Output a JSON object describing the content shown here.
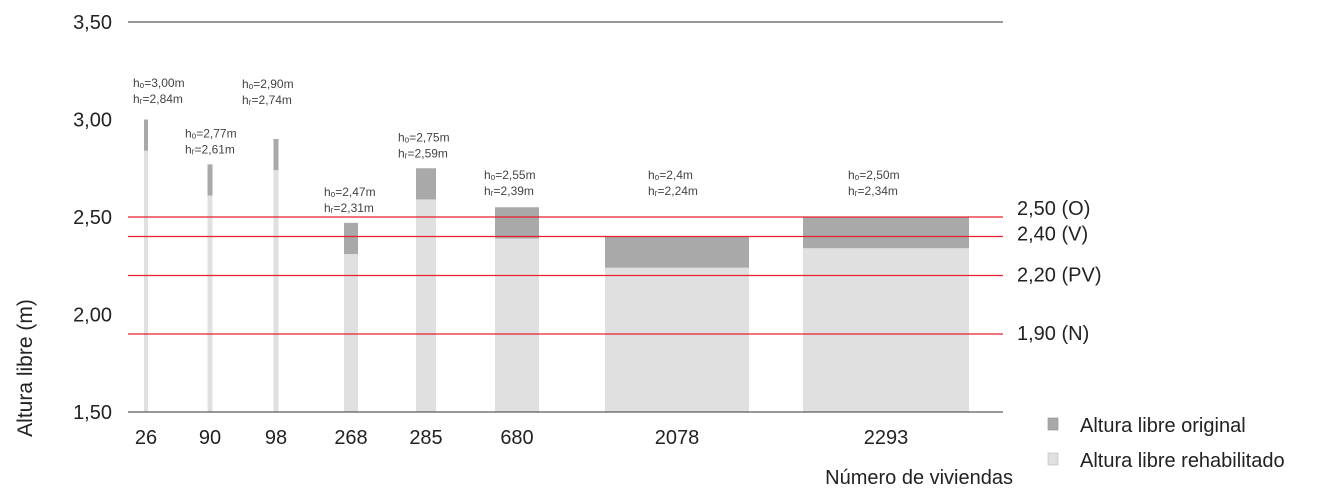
{
  "chart_data": {
    "type": "bar",
    "xlabel": "Número de viviendas",
    "ylabel": "Altura libre (m)",
    "ylim": [
      1.5,
      3.5
    ],
    "y_ticks": [
      "1,50",
      "2,00",
      "2,50",
      "3,00",
      "3,50"
    ],
    "categories": [
      "26",
      "90",
      "98",
      "268",
      "285",
      "680",
      "2078",
      "2293"
    ],
    "series": [
      {
        "name": "Altura libre original",
        "color": "#a9a9a9",
        "values": [
          3.0,
          2.77,
          2.9,
          2.47,
          2.75,
          2.55,
          2.4,
          2.5
        ]
      },
      {
        "name": "Altura libre rehabilitado",
        "color": "#e0e0e0",
        "values": [
          2.84,
          2.61,
          2.74,
          2.31,
          2.59,
          2.39,
          2.24,
          2.34
        ]
      }
    ],
    "annotations": [
      {
        "ho": "hₒ=3,00m",
        "hr": "hᵣ=2,84m"
      },
      {
        "ho": "hₒ=2,77m",
        "hr": "hᵣ=2,61m"
      },
      {
        "ho": "hₒ=2,90m",
        "hr": "hᵣ=2,74m"
      },
      {
        "ho": "hₒ=2,47m",
        "hr": "hᵣ=2,31m"
      },
      {
        "ho": "hₒ=2,75m",
        "hr": "hᵣ=2,59m"
      },
      {
        "ho": "hₒ=2,55m",
        "hr": "hᵣ=2,39m"
      },
      {
        "ho": "hₒ=2,4m",
        "hr": "hᵣ=2,24m"
      },
      {
        "ho": "hₒ=2,50m",
        "hr": "hᵣ=2,34m"
      }
    ],
    "reference_lines": [
      {
        "value": 2.5,
        "label": "2,50 (O)"
      },
      {
        "value": 2.4,
        "label": "2,40 (V)"
      },
      {
        "value": 2.2,
        "label": "2,20 (PV)"
      },
      {
        "value": 1.9,
        "label": "1,90 (N)"
      }
    ],
    "reference_color": "#e8202a",
    "grid": false,
    "legend_position": "bottom-right"
  }
}
